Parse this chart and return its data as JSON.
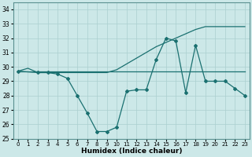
{
  "xlabel": "Humidex (Indice chaleur)",
  "ylabel": "",
  "xlim": [
    -0.5,
    23.5
  ],
  "ylim": [
    25,
    34.5
  ],
  "yticks": [
    25,
    26,
    27,
    28,
    29,
    30,
    31,
    32,
    33,
    34
  ],
  "xticks": [
    0,
    1,
    2,
    3,
    4,
    5,
    6,
    7,
    8,
    9,
    10,
    11,
    12,
    13,
    14,
    15,
    16,
    17,
    18,
    19,
    20,
    21,
    22,
    23
  ],
  "background_color": "#cce8e8",
  "grid_color": "#aacfcf",
  "line_color": "#1a7070",
  "line1_x": [
    0,
    1,
    2,
    3,
    4,
    5,
    6,
    7,
    8,
    9,
    10,
    11,
    12,
    13,
    14,
    15,
    16,
    17,
    18,
    19,
    20,
    21,
    22,
    23
  ],
  "line1_y": [
    29.7,
    29.9,
    29.6,
    29.6,
    29.6,
    29.6,
    29.6,
    29.6,
    29.6,
    29.6,
    29.8,
    30.2,
    30.6,
    31.0,
    31.4,
    31.7,
    32.0,
    32.3,
    32.6,
    32.8,
    32.8,
    32.8,
    32.8,
    32.8
  ],
  "line2_x": [
    0,
    2,
    3,
    4,
    5,
    6,
    7,
    8,
    9,
    10,
    11,
    12,
    13,
    14,
    15,
    16,
    17,
    18,
    19,
    20,
    21,
    22,
    23
  ],
  "line2_y": [
    29.7,
    29.6,
    29.6,
    29.5,
    29.2,
    28.0,
    26.8,
    25.5,
    25.5,
    25.8,
    28.3,
    28.4,
    28.4,
    30.5,
    32.0,
    31.8,
    28.2,
    31.5,
    29.0,
    29.0,
    29.0,
    28.5,
    28.0
  ],
  "line3_x": [
    0,
    1,
    2,
    3,
    4,
    5,
    6,
    7,
    8,
    9,
    10,
    11,
    12,
    13,
    14,
    15,
    16,
    17,
    18,
    19,
    20,
    21,
    22,
    23
  ],
  "line3_y": [
    29.7,
    29.7,
    29.7,
    29.7,
    29.7,
    29.7,
    29.7,
    29.7,
    29.7,
    29.7,
    29.7,
    29.7,
    29.7,
    29.7,
    29.7,
    29.7,
    29.7,
    29.7,
    29.7,
    29.7,
    29.7,
    29.7,
    29.7,
    29.7
  ],
  "marker": "D",
  "markersize": 2.0,
  "linewidth": 0.9
}
